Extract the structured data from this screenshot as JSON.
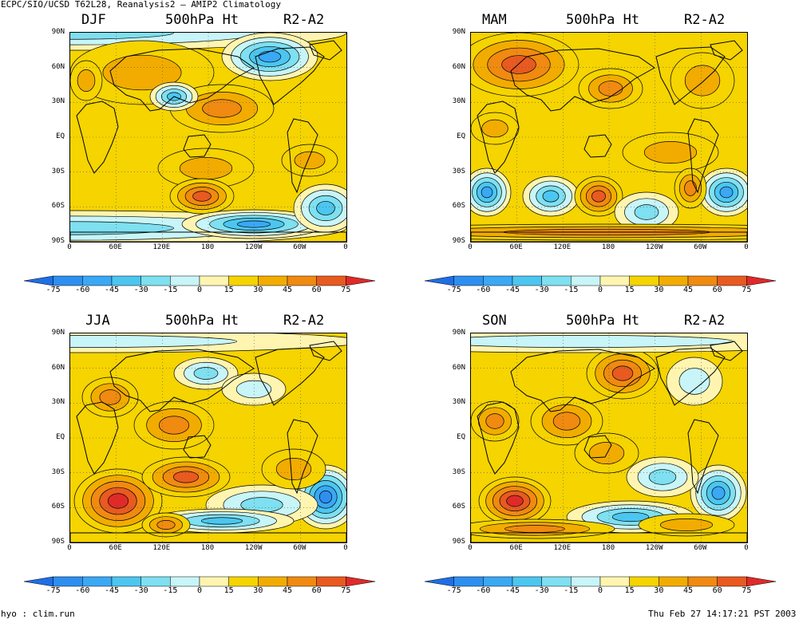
{
  "header": {
    "top_title": "ECPC/SIO/UCSD T62L28, Reanalysis2 — AMIP2 Climatology",
    "bottom_left": "hyo : clim.run",
    "bottom_right": "Thu Feb 27 14:17:21 PST 2003"
  },
  "panels": [
    {
      "season": "DJF",
      "field": "500hPa Ht",
      "diff": "R2-A2"
    },
    {
      "season": "MAM",
      "field": "500hPa Ht",
      "diff": "R2-A2"
    },
    {
      "season": "JJA",
      "field": "500hPa Ht",
      "diff": "R2-A2"
    },
    {
      "season": "SON",
      "field": "500hPa Ht",
      "diff": "R2-A2"
    }
  ],
  "lat_labels": [
    "90N",
    "60N",
    "30N",
    "EQ",
    "30S",
    "60S",
    "90S"
  ],
  "lon_labels_left": [
    "0",
    "60E",
    "120E",
    "180",
    "120W",
    "60W",
    "0"
  ],
  "lon_labels_right": [
    "0",
    "60E",
    "120E",
    "180",
    "120W",
    "60W",
    "0"
  ],
  "colorbar": {
    "levels": [
      "-75",
      "-60",
      "-45",
      "-30",
      "-15",
      "0",
      "15",
      "30",
      "45",
      "60",
      "75"
    ],
    "colors": [
      "#1e6fe6",
      "#2e8ff0",
      "#3aa8f5",
      "#4cc6f0",
      "#7ee0f0",
      "#c8f5f8",
      "#fff5b0",
      "#f5d400",
      "#f2ac00",
      "#f08a10",
      "#e85a20",
      "#e02a28"
    ]
  }
}
